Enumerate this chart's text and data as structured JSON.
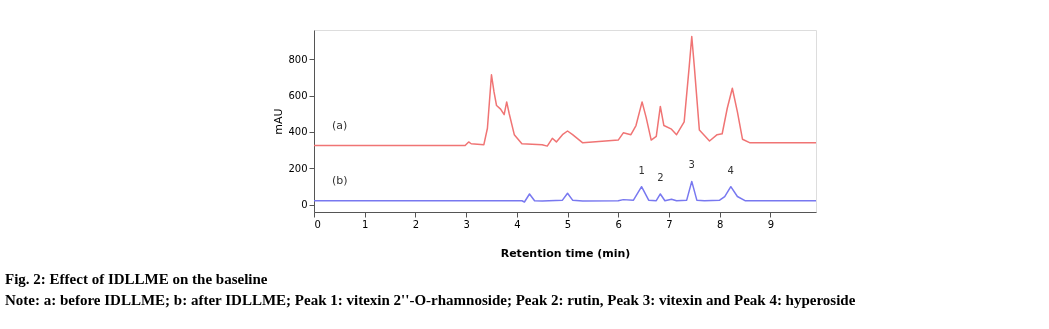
{
  "chart_data": {
    "type": "line",
    "title": "Fig. 2: Effect of IDLLME on the baseline",
    "xlabel": "Retention time (min)",
    "ylabel": "mAU",
    "xlim": [
      0,
      9.9
    ],
    "ylim": [
      -40,
      960
    ],
    "xticks": [
      0,
      1,
      2,
      3,
      4,
      5,
      6,
      7,
      8,
      9
    ],
    "yticks": [
      0,
      200,
      400,
      600,
      800
    ],
    "grid": false,
    "marker": "none",
    "line_style": "solid",
    "series": [
      {
        "name": "(a)",
        "color": "#f07474",
        "x": [
          0,
          2.98,
          3.05,
          3.1,
          3.35,
          3.42,
          3.5,
          3.55,
          3.6,
          3.68,
          3.75,
          3.8,
          3.85,
          3.95,
          4.1,
          4.5,
          4.6,
          4.7,
          4.78,
          4.9,
          5.0,
          5.1,
          5.3,
          6.0,
          6.1,
          6.25,
          6.35,
          6.47,
          6.55,
          6.65,
          6.75,
          6.83,
          6.9,
          7.05,
          7.15,
          7.3,
          7.4,
          7.45,
          7.5,
          7.6,
          7.8,
          7.95,
          8.05,
          8.15,
          8.25,
          8.35,
          8.45,
          8.6,
          9.0,
          9.9
        ],
        "values": [
          325,
          325,
          345,
          335,
          330,
          420,
          714,
          620,
          545,
          525,
          495,
          565,
          500,
          385,
          335,
          330,
          322,
          365,
          345,
          385,
          405,
          385,
          340,
          355,
          395,
          385,
          435,
          565,
          480,
          355,
          375,
          540,
          435,
          415,
          385,
          455,
          760,
          924,
          760,
          410,
          350,
          385,
          390,
          530,
          640,
          510,
          360,
          340,
          340,
          340
        ]
      },
      {
        "name": "(b)",
        "color": "#7878f0",
        "x": [
          0,
          3.4,
          4.1,
          4.15,
          4.25,
          4.35,
          4.5,
          4.9,
          5.0,
          5.1,
          5.3,
          6.0,
          6.1,
          6.3,
          6.46,
          6.6,
          6.75,
          6.83,
          6.92,
          7.05,
          7.15,
          7.35,
          7.45,
          7.55,
          7.7,
          8.0,
          8.1,
          8.22,
          8.35,
          8.5,
          9.9
        ],
        "values": [
          22,
          22,
          22,
          15,
          59,
          22,
          20,
          25,
          63,
          25,
          20,
          22,
          28,
          25,
          99,
          25,
          22,
          59,
          22,
          30,
          22,
          25,
          128,
          25,
          22,
          25,
          45,
          99,
          45,
          22,
          22
        ]
      }
    ],
    "annotations": [
      {
        "text": "1",
        "x": 6.46,
        "y": 99
      },
      {
        "text": "2",
        "x": 6.83,
        "y": 59
      },
      {
        "text": "3",
        "x": 7.45,
        "y": 128
      },
      {
        "text": "4",
        "x": 8.22,
        "y": 99
      },
      "Note: a: before IDLLME; b: after IDLLME; Peak 1: vitexin 2''-O-rhamnoside; Peak 2: rutin, Peak 3: vitexin and Peak 4: hyperoside"
    ]
  }
}
